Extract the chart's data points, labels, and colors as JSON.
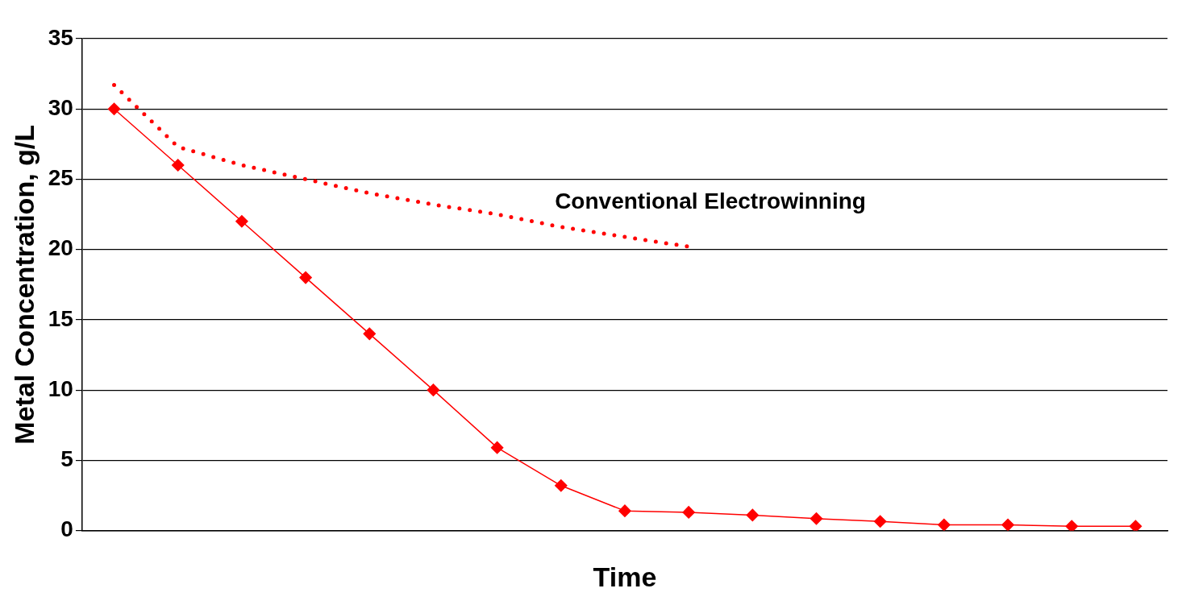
{
  "chart_data": {
    "type": "line",
    "xlabel": "Time",
    "ylabel": "Metal Concentration, g/L",
    "categories": [
      null,
      null,
      null,
      null,
      null,
      null,
      null,
      null,
      null,
      null,
      null,
      null,
      null,
      null,
      null,
      null,
      null
    ],
    "series": [
      {
        "color": "#ff0000",
        "marker": "diamond",
        "line_style": "solid",
        "values": [
          30,
          26,
          22,
          18,
          14,
          10,
          5.9,
          3.2,
          1.4,
          1.3,
          1.1,
          0.85,
          0.65,
          0.4,
          0.4,
          0.3,
          0.3
        ]
      },
      {
        "name": "Conventional Electrowinning",
        "color": "#ff0000",
        "marker": "none",
        "line_style": "dotted",
        "values": [
          31.7,
          27.3,
          26.0,
          25.0,
          24.0,
          23.2,
          22.5,
          21.6,
          20.9,
          20.2,
          null,
          null,
          null,
          null,
          null,
          null,
          null
        ]
      }
    ],
    "ylim": [
      0,
      35
    ],
    "yticks": [
      0,
      5,
      10,
      15,
      20,
      25,
      30,
      35
    ],
    "grid": "y",
    "legend": false
  }
}
